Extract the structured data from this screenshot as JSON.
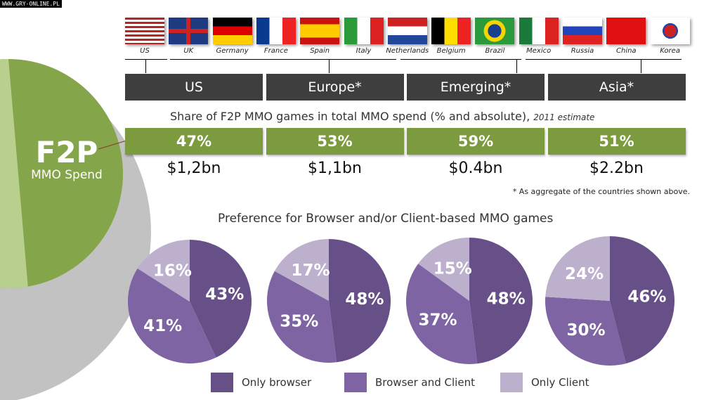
{
  "watermark": "WWW.GRY-ONLINE.PL",
  "f2p": {
    "title": "F2P",
    "subtitle": "MMO Spend"
  },
  "countries": [
    "US",
    "UK",
    "Germany",
    "France",
    "Spain",
    "Italy",
    "Netherlands",
    "Belgium",
    "Brazil",
    "Mexico",
    "Russia",
    "China",
    "Korea"
  ],
  "regions": [
    {
      "name": "US",
      "share": "47%",
      "absolute": "$1,2bn"
    },
    {
      "name": "Europe*",
      "share": "53%",
      "absolute": "$1,1bn"
    },
    {
      "name": "Emerging*",
      "share": "59%",
      "absolute": "$0.4bn"
    },
    {
      "name": "Asia*",
      "share": "51%",
      "absolute": "$2.2bn"
    }
  ],
  "share_title": "Share of F2P MMO games in total MMO spend  (% and absolute),",
  "share_note": "2011 estimate",
  "footnote": "* As aggregate of the countries shown above.",
  "pref_title": "Preference for Browser and/or Client-based MMO games",
  "chart_data": {
    "type": "pie",
    "title": "Preference for Browser and/or Client-based MMO games",
    "categories": [
      "Only browser",
      "Browser and Client",
      "Only Client"
    ],
    "colors": [
      "#674f88",
      "#7e64a2",
      "#bcb0cd"
    ],
    "series": [
      {
        "name": "US",
        "values": [
          43,
          41,
          16
        ]
      },
      {
        "name": "Europe*",
        "values": [
          48,
          35,
          17
        ]
      },
      {
        "name": "Emerging*",
        "values": [
          48,
          37,
          15
        ]
      },
      {
        "name": "Asia*",
        "values": [
          46,
          30,
          24
        ]
      }
    ],
    "legend": "bottom"
  }
}
